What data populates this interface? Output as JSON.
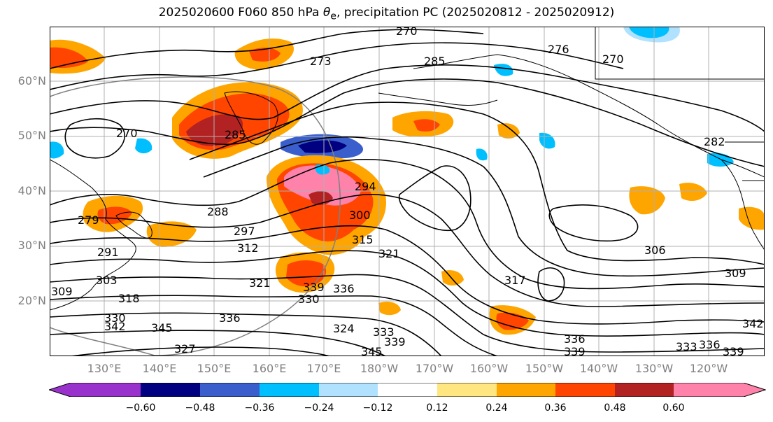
{
  "title": {
    "prefix": "2025020600 F060 850 hPa ",
    "theta": "θ",
    "theta_sub": "e",
    "suffix": ", precipitation PC (2025020812 - 2025020912)"
  },
  "lat_labels": [
    "60°N",
    "50°N",
    "40°N",
    "30°N",
    "20°N"
  ],
  "lon_labels": [
    "130°E",
    "140°E",
    "150°E",
    "160°E",
    "170°E",
    "180°W",
    "170°W",
    "160°W",
    "150°W",
    "140°W",
    "130°W",
    "120°W"
  ],
  "colorbar": {
    "ticks": [
      "−0.60",
      "−0.48",
      "−0.36",
      "−0.24",
      "−0.12",
      "0.12",
      "0.24",
      "0.36",
      "0.48",
      "0.60"
    ],
    "colors": [
      "#9932cc",
      "#000080",
      "#3a5fcd",
      "#00bfff",
      "#b0e2ff",
      "#ffffff",
      "#ffe680",
      "#ffa500",
      "#ff4500",
      "#b22222",
      "#ff82ab",
      "#ff69b4"
    ]
  },
  "contour_labels": [
    "270",
    "276",
    "270",
    "285",
    "273",
    "285",
    "270",
    "294",
    "288",
    "300",
    "297",
    "315",
    "312",
    "321",
    "306",
    "279",
    "291",
    "303",
    "309",
    "318",
    "321",
    "339",
    "330",
    "336",
    "317",
    "309",
    "330",
    "345",
    "336",
    "324",
    "333",
    "339",
    "327",
    "345",
    "336",
    "342",
    "339",
    "333",
    "336",
    "339",
    "342",
    "282"
  ],
  "map_layers": {
    "coastline_color": "#000000",
    "gridline_color": "#b0b0b0",
    "contour_color": "#000000"
  }
}
